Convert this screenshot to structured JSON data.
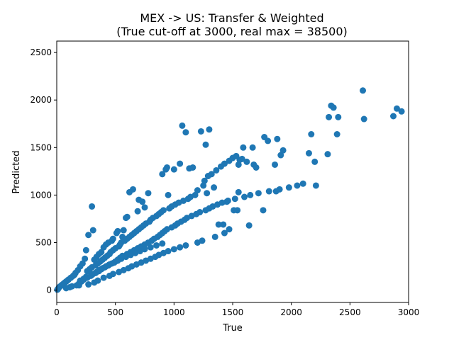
{
  "chart_data": {
    "type": "scatter",
    "title": "MEX -> US: Transfer & Weighted",
    "subtitle": "(True cut-off at 3000, real max = 38500)",
    "xlabel": "True",
    "ylabel": "Predicted",
    "xlim": [
      0,
      3000
    ],
    "ylim": [
      -130,
      2620
    ],
    "xticks": [
      "0",
      "500",
      "1000",
      "1500",
      "2000",
      "2500",
      "3000"
    ],
    "yticks": [
      "0",
      "500",
      "1000",
      "1500",
      "2000",
      "2500"
    ],
    "grid": false,
    "marker_color": "#1f77b4",
    "series": [
      {
        "x": [
          2610,
          2620,
          2340,
          2360,
          2900,
          2940,
          2870,
          2400,
          2320,
          2390,
          2310,
          2170,
          1800,
          1880,
          1770,
          1670,
          1590,
          1560,
          1550,
          1860,
          1910,
          1930,
          2150,
          2200,
          2210,
          1760,
          1870,
          1550,
          1540,
          1510,
          1450,
          1420,
          1380,
          1340,
          1280,
          1300,
          1270,
          1160,
          1230,
          1100,
          1070,
          1000,
          1050,
          1130,
          940,
          930,
          900,
          950,
          780,
          750,
          730,
          700,
          690,
          650,
          620,
          600,
          590,
          570,
          560,
          510,
          520,
          480,
          470,
          440,
          420,
          400,
          380,
          360,
          340,
          320,
          300,
          310,
          270,
          250,
          240,
          220,
          200,
          180,
          160,
          150,
          140,
          120,
          100,
          90,
          80,
          70,
          60,
          50,
          40,
          30,
          20,
          15,
          10,
          5,
          260,
          280,
          300,
          330,
          350,
          370,
          390,
          410,
          430,
          450,
          460,
          480,
          500,
          530,
          540,
          550,
          580,
          600,
          620,
          640,
          660,
          680,
          700,
          720,
          740,
          760,
          790,
          800,
          820,
          850,
          870,
          890,
          910,
          960,
          980,
          1010,
          1040,
          1080,
          1120,
          1140,
          1180,
          1200,
          1250,
          1260,
          1290,
          1320,
          1360,
          1400,
          1430,
          1470,
          1500,
          1530,
          1580,
          1620,
          1680,
          1700,
          200,
          230,
          250,
          300,
          330,
          360,
          380,
          410,
          440,
          470,
          500,
          520,
          540,
          560,
          600,
          630,
          660,
          690,
          720,
          750,
          780,
          810,
          830,
          860,
          880,
          900,
          920,
          940,
          980,
          1010,
          1030,
          1060,
          1090,
          1110,
          1150,
          1190,
          1220,
          1270,
          1300,
          1330,
          1370,
          1410,
          1460,
          1520,
          1600,
          1650,
          1720,
          1810,
          1900,
          1980,
          2050,
          2100,
          190,
          270,
          320,
          350,
          400,
          450,
          480,
          530,
          570,
          610,
          640,
          680,
          720,
          760,
          800,
          840,
          870,
          910,
          950,
          1000,
          1050,
          1100,
          1200,
          1240,
          1350,
          1430,
          1470,
          1640,
          80,
          110,
          130,
          170,
          190,
          210,
          230,
          260,
          290,
          310,
          340,
          360,
          390,
          420,
          450,
          490,
          520,
          550,
          590,
          630,
          670,
          710,
          750,
          800,
          850,
          900
        ],
        "y": [
          2100,
          1800,
          1940,
          1920,
          1910,
          1880,
          1830,
          1820,
          1820,
          1640,
          1430,
          1640,
          1570,
          1590,
          1610,
          1500,
          1500,
          1370,
          1320,
          1320,
          1420,
          1470,
          1440,
          1350,
          1100,
          840,
          1040,
          1030,
          840,
          840,
          930,
          690,
          690,
          1080,
          1020,
          1690,
          1530,
          1290,
          1670,
          1660,
          1730,
          1270,
          1330,
          1280,
          1290,
          1270,
          1220,
          1000,
          1020,
          870,
          930,
          950,
          830,
          1060,
          1030,
          770,
          760,
          630,
          560,
          600,
          620,
          540,
          520,
          500,
          480,
          450,
          400,
          380,
          350,
          320,
          880,
          630,
          580,
          420,
          330,
          280,
          250,
          210,
          180,
          160,
          150,
          130,
          110,
          100,
          90,
          80,
          70,
          60,
          50,
          40,
          30,
          20,
          10,
          5,
          200,
          220,
          240,
          260,
          280,
          300,
          320,
          340,
          360,
          380,
          400,
          420,
          440,
          460,
          480,
          500,
          520,
          540,
          560,
          580,
          600,
          620,
          640,
          660,
          680,
          700,
          720,
          740,
          760,
          780,
          800,
          820,
          840,
          860,
          880,
          900,
          920,
          940,
          960,
          980,
          1000,
          1050,
          1100,
          1150,
          1200,
          1220,
          1260,
          1300,
          1330,
          1360,
          1390,
          1410,
          1380,
          1350,
          1320,
          1290,
          100,
          120,
          140,
          160,
          180,
          200,
          220,
          240,
          260,
          280,
          300,
          320,
          340,
          360,
          380,
          400,
          420,
          440,
          460,
          480,
          500,
          520,
          540,
          560,
          580,
          600,
          620,
          640,
          660,
          680,
          700,
          720,
          740,
          760,
          780,
          800,
          820,
          840,
          860,
          880,
          900,
          920,
          940,
          960,
          980,
          1000,
          1020,
          1040,
          1060,
          1080,
          1100,
          1120,
          50,
          60,
          80,
          100,
          130,
          150,
          170,
          190,
          210,
          230,
          250,
          270,
          290,
          310,
          330,
          350,
          370,
          390,
          410,
          430,
          450,
          470,
          500,
          520,
          560,
          600,
          640,
          680,
          20,
          30,
          40,
          50,
          70,
          90,
          110,
          130,
          150,
          170,
          190,
          210,
          230,
          250,
          270,
          290,
          310,
          330,
          350,
          370,
          390,
          410,
          430,
          450,
          470,
          490
        ]
      }
    ]
  }
}
